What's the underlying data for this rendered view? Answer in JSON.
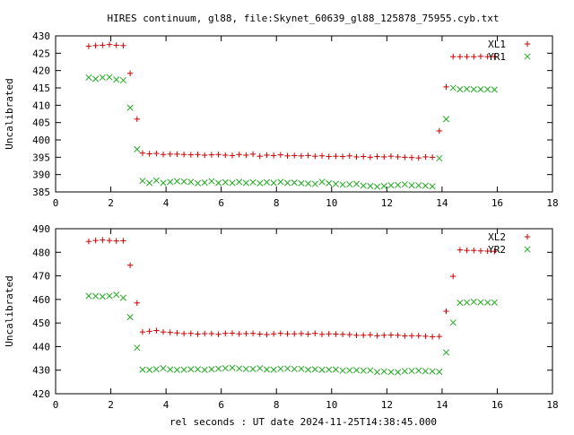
{
  "title": "HIRES continuum, gl88, file:Skynet_60639_gl88_125878_75955.cyb.txt",
  "xlabel": "rel seconds : UT date 2024-11-25T14:38:45.000",
  "colors": {
    "plus": "#cc0000",
    "cross": "#22aa22",
    "axis": "#000000"
  },
  "chart_data": [
    {
      "type": "scatter",
      "ylabel": "Uncalibrated",
      "xlim": [
        0,
        18
      ],
      "ylim": [
        385,
        430
      ],
      "xticks": [
        0,
        2,
        4,
        6,
        8,
        10,
        12,
        14,
        16,
        18
      ],
      "yticks": [
        385,
        390,
        395,
        400,
        405,
        410,
        415,
        420,
        425,
        430
      ],
      "legend_position": "top-right",
      "series": [
        {
          "name": "XL1",
          "marker": "plus",
          "x": [
            1.2,
            1.45,
            1.7,
            1.95,
            2.2,
            2.45,
            2.7,
            2.95,
            3.15,
            3.4,
            3.65,
            3.9,
            4.15,
            4.4,
            4.65,
            4.9,
            5.15,
            5.4,
            5.65,
            5.9,
            6.15,
            6.4,
            6.65,
            6.9,
            7.15,
            7.4,
            7.65,
            7.9,
            8.15,
            8.4,
            8.65,
            8.9,
            9.15,
            9.4,
            9.65,
            9.9,
            10.15,
            10.4,
            10.65,
            10.9,
            11.15,
            11.4,
            11.65,
            11.9,
            12.15,
            12.4,
            12.65,
            12.9,
            13.15,
            13.4,
            13.65,
            13.9,
            14.15,
            14.4,
            14.65,
            14.9,
            15.15,
            15.4,
            15.65,
            15.9
          ],
          "y": [
            427,
            427.2,
            427.3,
            427.5,
            427.3,
            427.2,
            419.2,
            406,
            396.2,
            396,
            396.1,
            395.8,
            395.9,
            395.9,
            395.8,
            395.7,
            395.8,
            395.6,
            395.7,
            395.8,
            395.6,
            395.5,
            395.8,
            395.6,
            395.9,
            395.3,
            395.6,
            395.5,
            395.7,
            395.4,
            395.5,
            395.4,
            395.5,
            395.3,
            395.4,
            395.2,
            395.3,
            395.2,
            395.4,
            395.1,
            395.2,
            395,
            395.2,
            395.1,
            395.3,
            395.1,
            395,
            394.9,
            394.8,
            395.1,
            395,
            402.6,
            415.3,
            424,
            424,
            424,
            424,
            424.1,
            424,
            424
          ],
          "y_override_note": ""
        },
        {
          "name": "YR1",
          "marker": "cross",
          "x": [
            1.2,
            1.45,
            1.7,
            1.95,
            2.2,
            2.45,
            2.7,
            2.95,
            3.15,
            3.4,
            3.65,
            3.9,
            4.15,
            4.4,
            4.65,
            4.9,
            5.15,
            5.4,
            5.65,
            5.9,
            6.15,
            6.4,
            6.65,
            6.9,
            7.15,
            7.4,
            7.65,
            7.9,
            8.15,
            8.4,
            8.65,
            8.9,
            9.15,
            9.4,
            9.65,
            9.9,
            10.15,
            10.4,
            10.65,
            10.9,
            11.15,
            11.4,
            11.65,
            11.9,
            12.15,
            12.4,
            12.65,
            12.9,
            13.15,
            13.4,
            13.65,
            13.9,
            14.15,
            14.4,
            14.65,
            14.9,
            15.15,
            15.4,
            15.65,
            15.9
          ],
          "y": [
            418,
            417.6,
            418,
            418.1,
            417.4,
            417.2,
            409.3,
            397.3,
            388.2,
            387.6,
            388.3,
            387.6,
            387.9,
            388.1,
            388,
            387.9,
            387.5,
            387.7,
            388.1,
            387.6,
            387.8,
            387.6,
            387.9,
            387.6,
            387.8,
            387.5,
            387.8,
            387.6,
            387.9,
            387.6,
            387.7,
            387.5,
            387.4,
            387.3,
            387.9,
            387.5,
            387.3,
            387.1,
            387.2,
            387.3,
            386.8,
            386.7,
            386.5,
            386.7,
            386.9,
            387,
            387.2,
            386.9,
            386.9,
            386.8,
            386.6,
            394.7,
            406,
            415,
            414.6,
            414.7,
            414.6,
            414.6,
            414.6,
            414.5
          ]
        }
      ]
    },
    {
      "type": "scatter",
      "ylabel": "Uncalibrated",
      "xlim": [
        0,
        18
      ],
      "ylim": [
        420,
        490
      ],
      "xticks": [
        0,
        2,
        4,
        6,
        8,
        10,
        12,
        14,
        16,
        18
      ],
      "yticks": [
        420,
        430,
        440,
        450,
        460,
        470,
        480,
        490
      ],
      "legend_position": "top-right",
      "series": [
        {
          "name": "XL2",
          "marker": "plus",
          "x": [
            1.2,
            1.45,
            1.7,
            1.95,
            2.2,
            2.45,
            2.7,
            2.95,
            3.15,
            3.4,
            3.65,
            3.9,
            4.15,
            4.4,
            4.65,
            4.9,
            5.15,
            5.4,
            5.65,
            5.9,
            6.15,
            6.4,
            6.65,
            6.9,
            7.15,
            7.4,
            7.65,
            7.9,
            8.15,
            8.4,
            8.65,
            8.9,
            9.15,
            9.4,
            9.65,
            9.9,
            10.15,
            10.4,
            10.65,
            10.9,
            11.15,
            11.4,
            11.65,
            11.9,
            12.15,
            12.4,
            12.65,
            12.9,
            13.15,
            13.4,
            13.65,
            13.9,
            14.15,
            14.4,
            14.65,
            14.9,
            15.15,
            15.4,
            15.65,
            15.9
          ],
          "y": [
            484.6,
            485,
            485.2,
            485,
            484.8,
            484.9,
            474.5,
            458.5,
            446.2,
            446.5,
            446.8,
            446.2,
            446,
            445.8,
            445.5,
            445.6,
            445.3,
            445.5,
            445.5,
            445.2,
            445.6,
            445.7,
            445.4,
            445.5,
            445.6,
            445.3,
            445.1,
            445.4,
            445.6,
            445.4,
            445.4,
            445.5,
            445.3,
            445.6,
            445.2,
            445.4,
            445.3,
            445.2,
            445.1,
            444.8,
            444.8,
            445,
            444.6,
            444.8,
            444.9,
            444.8,
            444.5,
            444.6,
            444.6,
            444.4,
            444.2,
            444.3,
            455,
            469.8,
            481,
            480.8,
            480.8,
            480.6,
            480.5,
            480.4
          ]
        },
        {
          "name": "YR2",
          "marker": "cross",
          "x": [
            1.2,
            1.45,
            1.7,
            1.95,
            2.2,
            2.45,
            2.7,
            2.95,
            3.15,
            3.4,
            3.65,
            3.9,
            4.15,
            4.4,
            4.65,
            4.9,
            5.15,
            5.4,
            5.65,
            5.9,
            6.15,
            6.4,
            6.65,
            6.9,
            7.15,
            7.4,
            7.65,
            7.9,
            8.15,
            8.4,
            8.65,
            8.9,
            9.15,
            9.4,
            9.65,
            9.9,
            10.15,
            10.4,
            10.65,
            10.9,
            11.15,
            11.4,
            11.65,
            11.9,
            12.15,
            12.4,
            12.65,
            12.9,
            13.15,
            13.4,
            13.65,
            13.9,
            14.15,
            14.4,
            14.65,
            14.9,
            15.15,
            15.4,
            15.65,
            15.9
          ],
          "y": [
            461.5,
            461.4,
            461.2,
            461.5,
            462,
            460.7,
            452.5,
            439.5,
            430.2,
            430.1,
            430.4,
            430.8,
            430.3,
            430.1,
            430.2,
            430.4,
            430.4,
            430.1,
            430.4,
            430.6,
            430.8,
            431,
            430.7,
            430.5,
            430.5,
            430.8,
            430.3,
            430.2,
            430.6,
            430.7,
            430.5,
            430.6,
            430.2,
            430.4,
            430.1,
            430.2,
            430.3,
            429.8,
            429.9,
            430,
            429.8,
            429.9,
            429.2,
            429.5,
            429.2,
            429.1,
            429.6,
            429.7,
            429.8,
            429.6,
            429.5,
            429.3,
            437.5,
            450.2,
            458.6,
            458.7,
            459,
            458.8,
            458.7,
            458.7
          ]
        }
      ]
    }
  ]
}
